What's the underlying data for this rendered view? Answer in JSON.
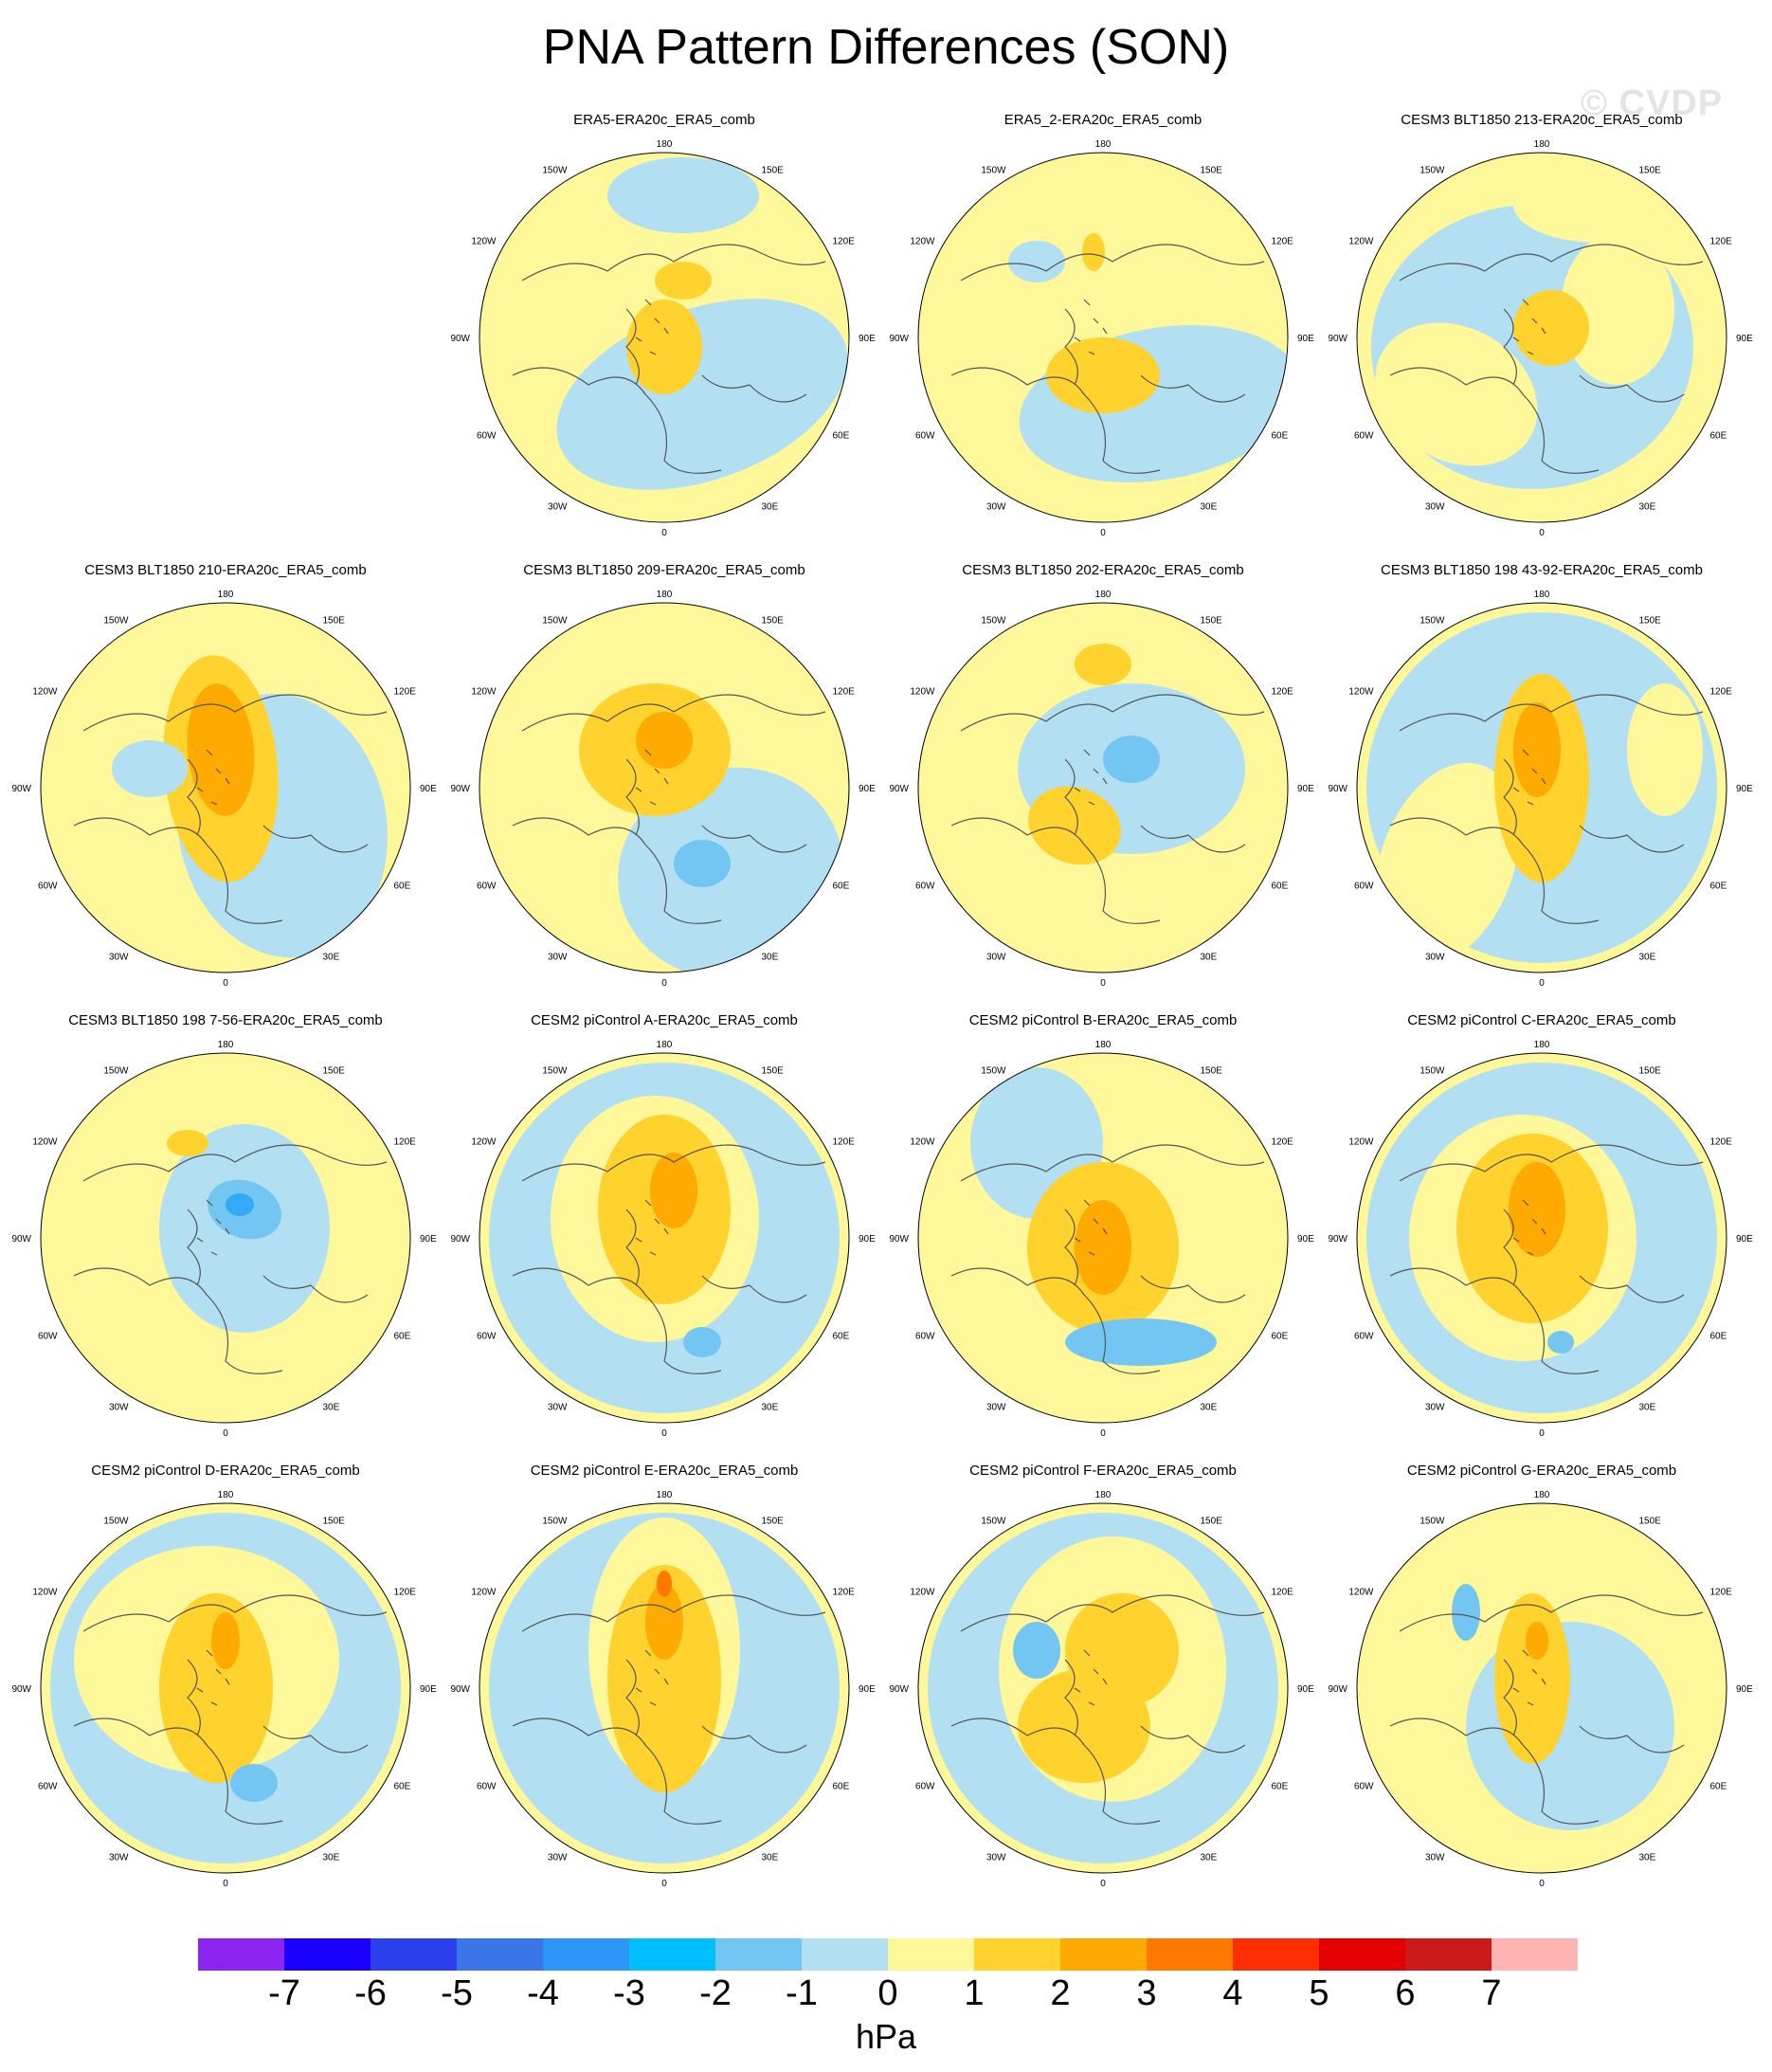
{
  "title": "PNA Pattern Differences (SON)",
  "watermark": "© CVDP",
  "units": "hPa",
  "colors": {
    "blue": "#b3dff2",
    "yellow": "#fff89a",
    "light_orange": "#ffd22e",
    "orange": "#ffaa00",
    "dark_orange": "#ff7800",
    "mid_blue": "#72c6f1",
    "deep_blue": "#33a9f7",
    "coast": "#555555"
  },
  "map_labels": {
    "top": "180",
    "top_left": "150W",
    "top_right": "150E",
    "upper_left": "120W",
    "upper_right": "120E",
    "left": "90W",
    "right": "90E",
    "lower_left": "60W",
    "lower_right": "60E",
    "bottom_left": "30W",
    "bottom_right": "30E",
    "bottom": "0"
  },
  "panels": [
    {
      "title": "ERA5-ERA20c_ERA5_comb"
    },
    {
      "title": "ERA5_2-ERA20c_ERA5_comb"
    },
    {
      "title": "CESM3 BLT1850 213-ERA20c_ERA5_comb"
    },
    {
      "title": "CESM3 BLT1850 210-ERA20c_ERA5_comb"
    },
    {
      "title": "CESM3 BLT1850 209-ERA20c_ERA5_comb"
    },
    {
      "title": "CESM3 BLT1850 202-ERA20c_ERA5_comb"
    },
    {
      "title": "CESM3 BLT1850 198 43-92-ERA20c_ERA5_comb"
    },
    {
      "title": "CESM3 BLT1850 198 7-56-ERA20c_ERA5_comb"
    },
    {
      "title": "CESM2 piControl A-ERA20c_ERA5_comb"
    },
    {
      "title": "CESM2 piControl B-ERA20c_ERA5_comb"
    },
    {
      "title": "CESM2 piControl C-ERA20c_ERA5_comb"
    },
    {
      "title": "CESM2 piControl D-ERA20c_ERA5_comb"
    },
    {
      "title": "CESM2 piControl E-ERA20c_ERA5_comb"
    },
    {
      "title": "CESM2 piControl F-ERA20c_ERA5_comb"
    },
    {
      "title": "CESM2 piControl G-ERA20c_ERA5_comb"
    }
  ],
  "colorbar": {
    "colors": [
      "#8c25f1",
      "#1a00ff",
      "#2a40ee",
      "#3a76e8",
      "#2b96f7",
      "#00bfff",
      "#72c6f1",
      "#b3dff2",
      "#fff89a",
      "#ffd22e",
      "#ffaa00",
      "#ff7800",
      "#ff2e00",
      "#e50000",
      "#cc1a1a",
      "#ffb3b3"
    ],
    "ticks": [
      "-7",
      "-6",
      "-5",
      "-4",
      "-3",
      "-2",
      "-1",
      "0",
      "1",
      "2",
      "3",
      "4",
      "5",
      "6",
      "7"
    ]
  }
}
